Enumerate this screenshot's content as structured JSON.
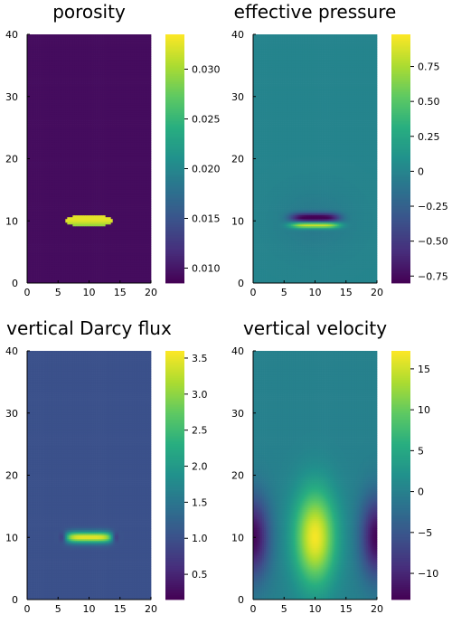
{
  "colormap": [
    "#440154",
    "#472d7b",
    "#3b528b",
    "#2c728e",
    "#21918c",
    "#28ae80",
    "#5ec962",
    "#addc30",
    "#fde725"
  ],
  "chart_data": [
    {
      "type": "heatmap",
      "title": "porosity",
      "xlim": [
        0,
        20
      ],
      "ylim": [
        0,
        40
      ],
      "xticks": [
        "0",
        "5",
        "10",
        "15",
        "20"
      ],
      "yticks": [
        "0",
        "10",
        "20",
        "30",
        "40"
      ],
      "clim": [
        0.0085,
        0.0335
      ],
      "cticks": [
        {
          "value": 0.01,
          "label": "0.010"
        },
        {
          "value": 0.015,
          "label": "0.015"
        },
        {
          "value": 0.02,
          "label": "0.020"
        },
        {
          "value": 0.025,
          "label": "0.025"
        },
        {
          "value": 0.03,
          "label": "0.030"
        }
      ],
      "field": {
        "kind": "porosity",
        "background": 0.0093,
        "peak": 0.0325,
        "center": [
          10,
          10
        ],
        "half_width": 4,
        "half_height": 1
      }
    },
    {
      "type": "heatmap",
      "title": "effective pressure",
      "xlim": [
        0,
        20
      ],
      "ylim": [
        0,
        40
      ],
      "xticks": [
        "0",
        "5",
        "10",
        "15",
        "20"
      ],
      "yticks": [
        "0",
        "10",
        "20",
        "30",
        "40"
      ],
      "clim": [
        -0.8,
        0.98
      ],
      "cticks": [
        {
          "value": -0.75,
          "label": "−0.75"
        },
        {
          "value": -0.5,
          "label": "−0.50"
        },
        {
          "value": -0.25,
          "label": "−0.25"
        },
        {
          "value": 0,
          "label": "0"
        },
        {
          "value": 0.25,
          "label": "0.25"
        },
        {
          "value": 0.5,
          "label": "0.50"
        },
        {
          "value": 0.75,
          "label": "0.75"
        }
      ],
      "field": {
        "kind": "pressure",
        "background": 0.0,
        "min": -0.78,
        "max": 0.96,
        "center": [
          10,
          10
        ],
        "half_width": 4
      }
    },
    {
      "type": "heatmap",
      "title": "vertical Darcy flux",
      "xlim": [
        0,
        20
      ],
      "ylim": [
        0,
        40
      ],
      "xticks": [
        "0",
        "5",
        "10",
        "15",
        "20"
      ],
      "yticks": [
        "0",
        "10",
        "20",
        "30",
        "40"
      ],
      "clim": [
        0.15,
        3.6
      ],
      "cticks": [
        {
          "value": 0.5,
          "label": "0.5"
        },
        {
          "value": 1.0,
          "label": "1.0"
        },
        {
          "value": 1.5,
          "label": "1.5"
        },
        {
          "value": 2.0,
          "label": "2.0"
        },
        {
          "value": 2.5,
          "label": "2.5"
        },
        {
          "value": 3.0,
          "label": "3.0"
        },
        {
          "value": 3.5,
          "label": "3.5"
        }
      ],
      "field": {
        "kind": "flux",
        "background": 1.0,
        "peak": 3.5,
        "min": 0.25,
        "center": [
          10,
          10
        ],
        "half_width": 4
      }
    },
    {
      "type": "heatmap",
      "title": "vertical velocity",
      "xlim": [
        0,
        20
      ],
      "ylim": [
        0,
        40
      ],
      "xticks": [
        "0",
        "5",
        "10",
        "15",
        "20"
      ],
      "yticks": [
        "0",
        "10",
        "20",
        "30",
        "40"
      ],
      "clim": [
        -13.2,
        17.2
      ],
      "cticks": [
        {
          "value": -10,
          "label": "−10"
        },
        {
          "value": -5,
          "label": "−5"
        },
        {
          "value": 0,
          "label": "0"
        },
        {
          "value": 5,
          "label": "5"
        },
        {
          "value": 10,
          "label": "10"
        },
        {
          "value": 15,
          "label": "15"
        }
      ],
      "field": {
        "kind": "velocity",
        "background": 0.0,
        "peak": 16.8,
        "min": -12.8,
        "center": [
          10,
          10
        ]
      }
    }
  ]
}
